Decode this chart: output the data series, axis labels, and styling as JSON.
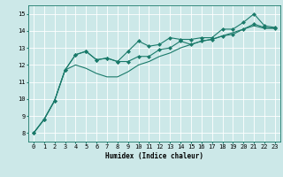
{
  "x_values": [
    0,
    1,
    2,
    3,
    4,
    5,
    6,
    7,
    8,
    9,
    10,
    11,
    12,
    13,
    14,
    15,
    16,
    17,
    18,
    19,
    20,
    21,
    22,
    23
  ],
  "line1": [
    8.0,
    8.8,
    9.9,
    11.7,
    12.6,
    12.8,
    12.3,
    12.4,
    12.2,
    12.8,
    13.4,
    13.1,
    13.2,
    13.6,
    13.5,
    13.5,
    13.6,
    13.6,
    14.1,
    14.1,
    14.5,
    15.0,
    14.3,
    14.2
  ],
  "line2": [
    8.0,
    8.8,
    9.9,
    11.7,
    12.6,
    12.8,
    12.3,
    12.4,
    12.2,
    12.2,
    12.5,
    12.5,
    12.9,
    13.0,
    13.4,
    13.2,
    13.4,
    13.5,
    13.7,
    13.8,
    14.1,
    14.4,
    14.2,
    14.15
  ],
  "line3": [
    8.0,
    8.8,
    9.9,
    11.7,
    12.0,
    11.8,
    11.5,
    11.3,
    11.3,
    11.6,
    12.0,
    12.2,
    12.5,
    12.7,
    13.0,
    13.2,
    13.4,
    13.5,
    13.7,
    13.9,
    14.1,
    14.3,
    14.15,
    14.15
  ],
  "line_color": "#1a7a6a",
  "background_color": "#cce8e8",
  "grid_color": "#ffffff",
  "xlabel": "Humidex (Indice chaleur)",
  "xlim": [
    -0.5,
    23.5
  ],
  "ylim": [
    7.5,
    15.5
  ],
  "yticks": [
    8,
    9,
    10,
    11,
    12,
    13,
    14,
    15
  ],
  "xticks": [
    0,
    1,
    2,
    3,
    4,
    5,
    6,
    7,
    8,
    9,
    10,
    11,
    12,
    13,
    14,
    15,
    16,
    17,
    18,
    19,
    20,
    21,
    22,
    23
  ],
  "marker": "D",
  "markersize": 2.0,
  "linewidth": 0.8,
  "tick_fontsize": 5.0,
  "xlabel_fontsize": 5.5
}
